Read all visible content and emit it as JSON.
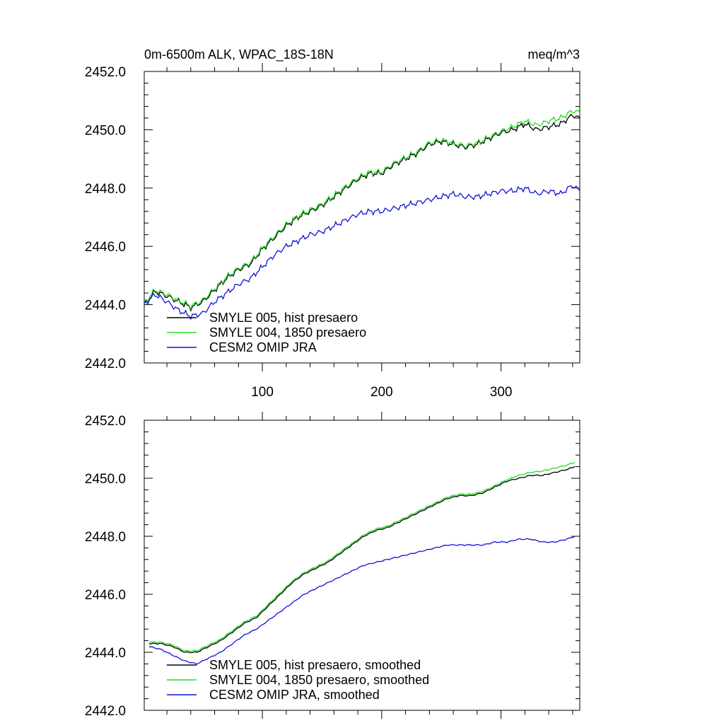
{
  "chart_data": [
    {
      "type": "line",
      "title_left": "0m-6500m ALK, WPAC_18S-18N",
      "title_right": "meq/m^3",
      "xlim": [
        1,
        366
      ],
      "ylim": [
        2442.0,
        2452.0
      ],
      "x_ticks": [
        100,
        200,
        300
      ],
      "x_tick_labels": [
        "100",
        "200",
        "300"
      ],
      "y_ticks": [
        2442.0,
        2444.0,
        2446.0,
        2448.0,
        2450.0,
        2452.0
      ],
      "y_tick_labels": [
        "2442.0",
        "2444.0",
        "2446.0",
        "2448.0",
        "2450.0",
        "2452.0"
      ],
      "legend_location": "lower-left",
      "series": [
        {
          "name": "SMYLE 005, hist presaero",
          "color": "#000000",
          "x": [
            1,
            10,
            20,
            30,
            40,
            50,
            60,
            70,
            80,
            90,
            100,
            110,
            120,
            130,
            140,
            150,
            160,
            170,
            180,
            190,
            200,
            210,
            220,
            230,
            240,
            250,
            260,
            270,
            280,
            290,
            300,
            310,
            320,
            330,
            340,
            350,
            360,
            366
          ],
          "y": [
            2444.0,
            2444.45,
            2444.3,
            2444.1,
            2443.9,
            2444.1,
            2444.5,
            2444.9,
            2445.2,
            2445.4,
            2445.9,
            2446.3,
            2446.7,
            2447.0,
            2447.2,
            2447.4,
            2447.7,
            2448.0,
            2448.3,
            2448.5,
            2448.5,
            2448.8,
            2449.0,
            2449.2,
            2449.5,
            2449.6,
            2449.5,
            2449.4,
            2449.5,
            2449.7,
            2449.9,
            2450.0,
            2450.2,
            2450.0,
            2450.1,
            2450.2,
            2450.5,
            2450.4
          ]
        },
        {
          "name": "SMYLE 004, 1850 presaero",
          "color": "#22dd22",
          "x": [
            1,
            10,
            20,
            30,
            40,
            50,
            60,
            70,
            80,
            90,
            100,
            110,
            120,
            130,
            140,
            150,
            160,
            170,
            180,
            190,
            200,
            210,
            220,
            230,
            240,
            250,
            260,
            270,
            280,
            290,
            300,
            310,
            320,
            330,
            340,
            350,
            360,
            366
          ],
          "y": [
            2444.05,
            2444.5,
            2444.35,
            2444.15,
            2443.95,
            2444.15,
            2444.55,
            2444.95,
            2445.25,
            2445.45,
            2445.95,
            2446.35,
            2446.75,
            2447.05,
            2447.25,
            2447.45,
            2447.75,
            2448.05,
            2448.35,
            2448.55,
            2448.55,
            2448.85,
            2449.05,
            2449.25,
            2449.55,
            2449.65,
            2449.55,
            2449.45,
            2449.55,
            2449.75,
            2449.95,
            2450.1,
            2450.3,
            2450.15,
            2450.3,
            2450.4,
            2450.65,
            2450.6
          ]
        },
        {
          "name": "CESM2 OMIP JRA",
          "color": "#1111dd",
          "x": [
            1,
            10,
            20,
            30,
            40,
            50,
            60,
            70,
            80,
            90,
            100,
            110,
            120,
            130,
            140,
            150,
            160,
            170,
            180,
            190,
            200,
            210,
            220,
            230,
            240,
            250,
            260,
            270,
            280,
            290,
            300,
            310,
            320,
            330,
            340,
            350,
            360,
            366
          ],
          "y": [
            2444.0,
            2444.35,
            2444.1,
            2443.8,
            2443.6,
            2443.7,
            2444.1,
            2444.4,
            2444.7,
            2444.9,
            2445.3,
            2445.7,
            2446.0,
            2446.2,
            2446.4,
            2446.5,
            2446.7,
            2446.9,
            2447.1,
            2447.2,
            2447.2,
            2447.3,
            2447.4,
            2447.5,
            2447.6,
            2447.7,
            2447.8,
            2447.7,
            2447.7,
            2447.8,
            2447.9,
            2447.9,
            2448.0,
            2447.8,
            2447.9,
            2447.8,
            2448.1,
            2447.9
          ]
        }
      ]
    },
    {
      "type": "line",
      "xlim": [
        1,
        366
      ],
      "ylim": [
        2442.0,
        2452.0
      ],
      "x_ticks": [
        100,
        200,
        300
      ],
      "y_ticks": [
        2442.0,
        2444.0,
        2446.0,
        2448.0,
        2450.0,
        2452.0
      ],
      "y_tick_labels": [
        "2442.0",
        "2444.0",
        "2446.0",
        "2448.0",
        "2450.0",
        "2452.0"
      ],
      "legend_location": "lower-left",
      "series": [
        {
          "name": "SMYLE 005, hist presaero, smoothed",
          "color": "#000000",
          "x": [
            5,
            15,
            25,
            35,
            45,
            55,
            65,
            75,
            85,
            95,
            105,
            115,
            125,
            135,
            145,
            155,
            165,
            175,
            185,
            195,
            205,
            215,
            225,
            235,
            245,
            255,
            265,
            275,
            285,
            295,
            305,
            315,
            325,
            335,
            345,
            355,
            362
          ],
          "y": [
            2444.3,
            2444.3,
            2444.2,
            2444.0,
            2444.0,
            2444.2,
            2444.4,
            2444.7,
            2445.0,
            2445.2,
            2445.6,
            2446.0,
            2446.4,
            2446.7,
            2446.9,
            2447.1,
            2447.4,
            2447.7,
            2448.0,
            2448.2,
            2448.3,
            2448.5,
            2448.7,
            2448.9,
            2449.1,
            2449.3,
            2449.4,
            2449.4,
            2449.5,
            2449.7,
            2449.9,
            2450.0,
            2450.1,
            2450.1,
            2450.2,
            2450.3,
            2450.4
          ]
        },
        {
          "name": "SMYLE 004, 1850 presaero, smoothed",
          "color": "#22dd22",
          "x": [
            5,
            15,
            25,
            35,
            45,
            55,
            65,
            75,
            85,
            95,
            105,
            115,
            125,
            135,
            145,
            155,
            165,
            175,
            185,
            195,
            205,
            215,
            225,
            235,
            245,
            255,
            265,
            275,
            285,
            295,
            305,
            315,
            325,
            335,
            345,
            355,
            362
          ],
          "y": [
            2444.35,
            2444.35,
            2444.25,
            2444.05,
            2444.05,
            2444.25,
            2444.45,
            2444.75,
            2445.05,
            2445.25,
            2445.65,
            2446.05,
            2446.45,
            2446.75,
            2446.95,
            2447.15,
            2447.45,
            2447.75,
            2448.05,
            2448.25,
            2448.35,
            2448.55,
            2448.75,
            2448.95,
            2449.15,
            2449.35,
            2449.45,
            2449.45,
            2449.55,
            2449.75,
            2449.95,
            2450.1,
            2450.2,
            2450.25,
            2450.35,
            2450.45,
            2450.55
          ]
        },
        {
          "name": "CESM2 OMIP JRA, smoothed",
          "color": "#1111dd",
          "x": [
            5,
            15,
            25,
            35,
            45,
            55,
            65,
            75,
            85,
            95,
            105,
            115,
            125,
            135,
            145,
            155,
            165,
            175,
            185,
            195,
            205,
            215,
            225,
            235,
            245,
            255,
            265,
            275,
            285,
            295,
            305,
            315,
            325,
            335,
            345,
            355,
            362
          ],
          "y": [
            2444.2,
            2444.1,
            2443.9,
            2443.7,
            2443.6,
            2443.8,
            2444.0,
            2444.3,
            2444.6,
            2444.8,
            2445.1,
            2445.4,
            2445.7,
            2446.0,
            2446.2,
            2446.4,
            2446.6,
            2446.8,
            2447.0,
            2447.1,
            2447.2,
            2447.3,
            2447.4,
            2447.5,
            2447.6,
            2447.7,
            2447.7,
            2447.7,
            2447.7,
            2447.8,
            2447.8,
            2447.9,
            2447.9,
            2447.8,
            2447.8,
            2447.9,
            2448.0
          ]
        }
      ]
    }
  ]
}
